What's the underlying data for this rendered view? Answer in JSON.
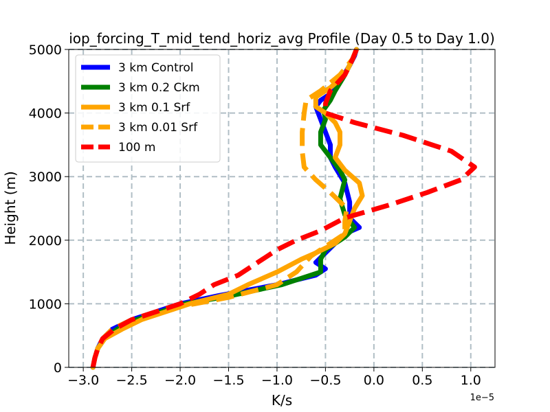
{
  "chart_data": {
    "type": "line",
    "title": "iop_forcing_T_mid_tend_horiz_avg Profile (Day 0.5 to Day 1.0)",
    "xlabel": "K/s",
    "ylabel": "Height (m)",
    "x_offset_label": "1e−5",
    "xlim": [
      -3.15,
      1.25
    ],
    "ylim": [
      0,
      5000
    ],
    "xticks": [
      -3.0,
      -2.5,
      -2.0,
      -1.5,
      -1.0,
      -0.5,
      0.0,
      0.5,
      1.0
    ],
    "xtick_labels": [
      "−3.0",
      "−2.5",
      "−2.0",
      "−1.5",
      "−1.0",
      "−0.5",
      "0.0",
      "0.5",
      "1.0"
    ],
    "yticks": [
      0,
      1000,
      2000,
      3000,
      4000,
      5000
    ],
    "ytick_labels": [
      "0",
      "1000",
      "2000",
      "3000",
      "4000",
      "5000"
    ],
    "grid": true,
    "legend_position": "upper-left",
    "series": [
      {
        "name": "3 km Control",
        "color": "#0000ff",
        "style": "solid",
        "points": [
          [
            -2.9,
            0
          ],
          [
            -2.88,
            150
          ],
          [
            -2.85,
            300
          ],
          [
            -2.8,
            450
          ],
          [
            -2.7,
            600
          ],
          [
            -2.5,
            750
          ],
          [
            -2.2,
            900
          ],
          [
            -2.0,
            1000
          ],
          [
            -1.6,
            1130
          ],
          [
            -1.0,
            1300
          ],
          [
            -0.6,
            1450
          ],
          [
            -0.5,
            1550
          ],
          [
            -0.6,
            1650
          ],
          [
            -0.5,
            1800
          ],
          [
            -0.4,
            1950
          ],
          [
            -0.3,
            2100
          ],
          [
            -0.15,
            2200
          ],
          [
            -0.25,
            2350
          ],
          [
            -0.25,
            2600
          ],
          [
            -0.3,
            2900
          ],
          [
            -0.4,
            3150
          ],
          [
            -0.45,
            3300
          ],
          [
            -0.45,
            3500
          ],
          [
            -0.5,
            3700
          ],
          [
            -0.55,
            3900
          ],
          [
            -0.6,
            4100
          ],
          [
            -0.55,
            4200
          ],
          [
            -0.45,
            4300
          ],
          [
            -0.35,
            4500
          ],
          [
            -0.25,
            4750
          ],
          [
            -0.2,
            4900
          ],
          [
            -0.18,
            5000
          ]
        ]
      },
      {
        "name": "3 km 0.2 Ckm",
        "color": "#008000",
        "style": "solid",
        "points": [
          [
            -2.9,
            0
          ],
          [
            -2.88,
            150
          ],
          [
            -2.85,
            300
          ],
          [
            -2.78,
            450
          ],
          [
            -2.65,
            600
          ],
          [
            -2.45,
            750
          ],
          [
            -2.15,
            900
          ],
          [
            -1.95,
            1000
          ],
          [
            -1.5,
            1120
          ],
          [
            -0.95,
            1300
          ],
          [
            -0.55,
            1500
          ],
          [
            -0.55,
            1700
          ],
          [
            -0.5,
            1850
          ],
          [
            -0.4,
            1950
          ],
          [
            -0.3,
            2050
          ],
          [
            -0.2,
            2200
          ],
          [
            -0.3,
            2400
          ],
          [
            -0.35,
            2650
          ],
          [
            -0.3,
            2950
          ],
          [
            -0.35,
            3100
          ],
          [
            -0.45,
            3300
          ],
          [
            -0.55,
            3500
          ],
          [
            -0.55,
            3700
          ],
          [
            -0.5,
            3900
          ],
          [
            -0.52,
            4050
          ],
          [
            -0.45,
            4200
          ],
          [
            -0.4,
            4350
          ],
          [
            -0.3,
            4600
          ],
          [
            -0.22,
            4850
          ],
          [
            -0.18,
            5000
          ]
        ]
      },
      {
        "name": "3 km 0.1 Srf",
        "color": "#ffa500",
        "style": "solid",
        "points": [
          [
            -2.9,
            0
          ],
          [
            -2.88,
            150
          ],
          [
            -2.85,
            300
          ],
          [
            -2.78,
            450
          ],
          [
            -2.6,
            600
          ],
          [
            -2.4,
            750
          ],
          [
            -2.1,
            900
          ],
          [
            -1.9,
            1000
          ],
          [
            -1.5,
            1150
          ],
          [
            -1.3,
            1300
          ],
          [
            -1.0,
            1500
          ],
          [
            -0.75,
            1700
          ],
          [
            -0.6,
            1800
          ],
          [
            -0.4,
            1950
          ],
          [
            -0.3,
            2100
          ],
          [
            -0.25,
            2300
          ],
          [
            -0.2,
            2500
          ],
          [
            -0.12,
            2700
          ],
          [
            -0.15,
            2900
          ],
          [
            -0.3,
            3100
          ],
          [
            -0.4,
            3300
          ],
          [
            -0.35,
            3500
          ],
          [
            -0.35,
            3700
          ],
          [
            -0.4,
            3850
          ],
          [
            -0.5,
            4000
          ],
          [
            -0.6,
            4100
          ],
          [
            -0.6,
            4250
          ],
          [
            -0.45,
            4400
          ],
          [
            -0.3,
            4600
          ],
          [
            -0.22,
            4850
          ],
          [
            -0.18,
            5000
          ]
        ]
      },
      {
        "name": "3 km 0.01 Srf",
        "color": "#ffa500",
        "style": "dashed",
        "points": [
          [
            -2.9,
            0
          ],
          [
            -2.88,
            150
          ],
          [
            -2.85,
            300
          ],
          [
            -2.8,
            450
          ],
          [
            -2.7,
            600
          ],
          [
            -2.5,
            750
          ],
          [
            -2.2,
            900
          ],
          [
            -1.85,
            1000
          ],
          [
            -1.5,
            1100
          ],
          [
            -1.0,
            1300
          ],
          [
            -0.8,
            1500
          ],
          [
            -0.65,
            1750
          ],
          [
            -0.5,
            1900
          ],
          [
            -0.3,
            2100
          ],
          [
            -0.3,
            2300
          ],
          [
            -0.28,
            2500
          ],
          [
            -0.45,
            2750
          ],
          [
            -0.6,
            2950
          ],
          [
            -0.72,
            3150
          ],
          [
            -0.74,
            3400
          ],
          [
            -0.74,
            3700
          ],
          [
            -0.72,
            4000
          ],
          [
            -0.7,
            4200
          ],
          [
            -0.55,
            4350
          ],
          [
            -0.35,
            4600
          ],
          [
            -0.22,
            4850
          ],
          [
            -0.18,
            5000
          ]
        ]
      },
      {
        "name": "100 m",
        "color": "#ff0000",
        "style": "dashed",
        "points": [
          [
            -2.9,
            0
          ],
          [
            -2.88,
            150
          ],
          [
            -2.85,
            300
          ],
          [
            -2.8,
            450
          ],
          [
            -2.68,
            600
          ],
          [
            -2.5,
            750
          ],
          [
            -2.2,
            900
          ],
          [
            -2.0,
            1000
          ],
          [
            -1.8,
            1150
          ],
          [
            -1.65,
            1300
          ],
          [
            -1.4,
            1450
          ],
          [
            -1.2,
            1650
          ],
          [
            -1.0,
            1850
          ],
          [
            -0.8,
            2000
          ],
          [
            -0.55,
            2150
          ],
          [
            -0.3,
            2350
          ],
          [
            0.15,
            2550
          ],
          [
            0.55,
            2750
          ],
          [
            0.9,
            2950
          ],
          [
            1.04,
            3150
          ],
          [
            0.8,
            3400
          ],
          [
            0.3,
            3650
          ],
          [
            -0.2,
            3850
          ],
          [
            -0.5,
            4000
          ],
          [
            -0.5,
            4150
          ],
          [
            -0.45,
            4350
          ],
          [
            -0.3,
            4600
          ],
          [
            -0.22,
            4850
          ],
          [
            -0.18,
            5000
          ]
        ]
      }
    ]
  }
}
